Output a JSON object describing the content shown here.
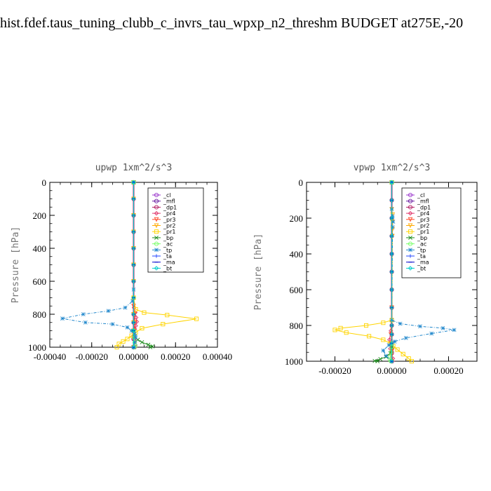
{
  "page_title": "hist.fdef.taus_tuning_clubb_c_invrs_tau_wpxp_n2_threshm  BUDGET at275E,-20",
  "chart_data": [
    {
      "type": "line",
      "title": "upwp   1xm^2/s^3",
      "ylabel": "Pressure [hPa]",
      "xlim": [
        -0.0004,
        0.0004
      ],
      "ylim": [
        1000,
        0
      ],
      "xticks": [
        "-0.00040",
        "-0.00020",
        "0.00000",
        "0.00020",
        "0.00040"
      ],
      "yticks": [
        "0",
        "200",
        "400",
        "600",
        "800",
        "1000"
      ],
      "legend": [
        "_cl",
        "_mfl",
        "_dp1",
        "_pr4",
        "_pr3",
        "_pr2",
        "_pr1",
        "_bp",
        "_ac",
        "_tp",
        "_ta",
        "_ma",
        "_bt"
      ],
      "series": [
        {
          "name": "_cl",
          "color": "#9933cc",
          "marker": "circle",
          "x": [
            0,
            0,
            0,
            0,
            0,
            0,
            0,
            0,
            0,
            0,
            0,
            0,
            0
          ],
          "y": [
            0,
            100,
            200,
            300,
            400,
            500,
            600,
            700,
            800,
            850,
            900,
            950,
            1000
          ]
        },
        {
          "name": "_mfl",
          "color": "#66169e",
          "marker": "circle",
          "x": [
            0,
            0,
            0,
            0,
            0,
            0,
            0,
            0,
            0,
            0,
            0,
            0,
            0
          ],
          "y": [
            0,
            100,
            200,
            300,
            400,
            500,
            600,
            700,
            800,
            850,
            900,
            950,
            1000
          ]
        },
        {
          "name": "_dp1",
          "color": "#b0175f",
          "marker": "circle",
          "x": [
            0,
            0,
            0,
            0,
            0,
            0,
            0,
            0,
            0,
            0,
            0,
            0,
            0
          ],
          "y": [
            0,
            100,
            200,
            300,
            400,
            500,
            600,
            700,
            800,
            850,
            900,
            950,
            1000
          ]
        },
        {
          "name": "_pr4",
          "color": "#e0356b",
          "marker": "diamond",
          "x": [
            0,
            0,
            0,
            2e-06,
            8e-06,
            1.2e-05,
            1.5e-05,
            1e-05,
            6e-06,
            2e-06,
            0,
            4e-06,
            6e-06,
            8e-06,
            8e-06
          ],
          "y": [
            0,
            400,
            700,
            760,
            790,
            820,
            845,
            870,
            890,
            910,
            935,
            955,
            970,
            985,
            1000
          ]
        },
        {
          "name": "_pr3",
          "color": "#ff4422",
          "marker": "tri",
          "x": [
            0,
            0,
            0,
            4e-06,
            6e-06,
            2e-06,
            0
          ],
          "y": [
            0,
            500,
            750,
            800,
            850,
            900,
            1000
          ]
        },
        {
          "name": "_pr2",
          "color": "#ffaa00",
          "marker": "tri",
          "x": [
            0,
            0,
            0,
            0,
            0,
            0,
            0,
            0,
            0,
            0,
            0,
            0
          ],
          "y": [
            0,
            100,
            200,
            300,
            400,
            500,
            600,
            700,
            800,
            850,
            900,
            1000
          ]
        },
        {
          "name": "_pr1",
          "color": "#ffd400",
          "marker": "square",
          "x": [
            0,
            0,
            1e-05,
            5e-05,
            0.00016,
            0.0003,
            0.00014,
            4e-05,
            1e-05,
            -1e-05,
            -3e-05,
            -5e-05,
            -7e-05,
            -8e-05
          ],
          "y": [
            0,
            700,
            770,
            790,
            805,
            828,
            860,
            885,
            910,
            930,
            950,
            965,
            980,
            1000
          ]
        },
        {
          "name": "_bp",
          "color": "#1e8c1e",
          "marker": "cross",
          "x": [
            0,
            0,
            5e-06,
            2e-05,
            4e-05,
            7e-05,
            9e-05,
            8e-05
          ],
          "y": [
            0,
            900,
            935,
            955,
            970,
            985,
            995,
            1000
          ]
        },
        {
          "name": "_ac",
          "color": "#77ff66",
          "marker": "circle",
          "x": [
            0,
            0,
            2e-06,
            5e-06,
            8e-06,
            4e-06
          ],
          "y": [
            0,
            900,
            940,
            970,
            990,
            1000
          ]
        },
        {
          "name": "_tp",
          "color": "#2288cc",
          "marker": "star",
          "x": [
            0,
            0,
            -5e-06,
            -4e-05,
            -0.00012,
            -0.00024,
            -0.00034,
            -0.00023,
            -0.0001,
            -3e-05,
            -1e-05,
            5e-06,
            1e-05,
            5e-06,
            0
          ],
          "y": [
            0,
            650,
            720,
            760,
            780,
            800,
            826,
            850,
            860,
            880,
            900,
            920,
            940,
            970,
            1000
          ]
        },
        {
          "name": "_ta",
          "color": "#2244ff",
          "marker": "plus",
          "x": [
            0,
            0,
            0,
            0,
            0,
            0,
            0,
            0,
            0,
            0,
            0,
            0
          ],
          "y": [
            0,
            100,
            200,
            300,
            400,
            500,
            600,
            700,
            800,
            850,
            900,
            1000
          ]
        },
        {
          "name": "_ma",
          "color": "#0000cc",
          "marker": "dash",
          "x": [
            0,
            0,
            0,
            0,
            0,
            0,
            0,
            0,
            0,
            0,
            0,
            0
          ],
          "y": [
            0,
            100,
            200,
            300,
            400,
            500,
            600,
            700,
            800,
            850,
            900,
            1000
          ]
        },
        {
          "name": "_bt",
          "color": "#00cccc",
          "marker": "diamond",
          "x": [
            0,
            0,
            0,
            0,
            0,
            0,
            0,
            0,
            0,
            0,
            0,
            0
          ],
          "y": [
            0,
            100,
            200,
            300,
            400,
            500,
            600,
            700,
            800,
            850,
            900,
            1000
          ]
        }
      ]
    },
    {
      "type": "line",
      "title": "vpwp   1xm^2/s^3",
      "ylabel": "Pressure [hPa]",
      "xlim": [
        -0.0003,
        0.0003
      ],
      "ylim": [
        1000,
        0
      ],
      "xticks": [
        "-0.00020",
        "0.00000",
        "0.00020"
      ],
      "yticks": [
        "0",
        "200",
        "400",
        "600",
        "800",
        "1000"
      ],
      "legend": [
        "_cl",
        "_mfl",
        "_dp1",
        "_pr4",
        "_pr3",
        "_pr2",
        "_pr1",
        "_bp",
        "_ac",
        "_tp",
        "_ta",
        "_ma",
        "_bt"
      ],
      "series": [
        {
          "name": "_cl",
          "color": "#9933cc",
          "marker": "circle",
          "x": [
            0,
            0,
            0,
            0,
            0,
            0,
            0,
            0,
            0,
            0,
            0,
            0,
            0
          ],
          "y": [
            0,
            100,
            200,
            300,
            400,
            500,
            600,
            700,
            800,
            850,
            900,
            950,
            1000
          ]
        },
        {
          "name": "_mfl",
          "color": "#66169e",
          "marker": "circle",
          "x": [
            0,
            0,
            0,
            0,
            0,
            0,
            0,
            0,
            0,
            0,
            0,
            0,
            0
          ],
          "y": [
            0,
            100,
            200,
            300,
            400,
            500,
            600,
            700,
            800,
            850,
            900,
            950,
            1000
          ]
        },
        {
          "name": "_dp1",
          "color": "#b0175f",
          "marker": "circle",
          "x": [
            0,
            0,
            0,
            0,
            0,
            0,
            0,
            0,
            0,
            0,
            0,
            0,
            0
          ],
          "y": [
            0,
            100,
            200,
            300,
            400,
            500,
            600,
            700,
            800,
            850,
            900,
            950,
            1000
          ]
        },
        {
          "name": "_pr4",
          "color": "#e0356b",
          "marker": "diamond",
          "x": [
            0,
            0,
            -3e-06,
            -8e-06,
            -5e-06,
            0,
            4e-06,
            3e-06
          ],
          "y": [
            0,
            700,
            830,
            880,
            930,
            960,
            985,
            1000
          ]
        },
        {
          "name": "_pr3",
          "color": "#ff4422",
          "marker": "tri",
          "x": [
            0,
            0,
            -3e-06,
            4e-06,
            0
          ],
          "y": [
            0,
            700,
            850,
            930,
            1000
          ]
        },
        {
          "name": "_pr2",
          "color": "#ffaa00",
          "marker": "tri",
          "x": [
            0,
            0,
            3e-06,
            2e-06,
            3e-06,
            2e-06,
            0
          ],
          "y": [
            0,
            150,
            180,
            220,
            260,
            300,
            1000
          ]
        },
        {
          "name": "_pr1",
          "color": "#ffd400",
          "marker": "square",
          "x": [
            0,
            0,
            -3e-05,
            -9e-05,
            -0.00018,
            -0.0002,
            -0.00016,
            -8e-05,
            -3e-05,
            -5e-06,
            5e-06,
            2e-05,
            4e-05,
            6e-05,
            7e-05
          ],
          "y": [
            0,
            770,
            785,
            800,
            815,
            825,
            840,
            860,
            880,
            900,
            915,
            935,
            960,
            985,
            1000
          ]
        },
        {
          "name": "_bp",
          "color": "#1e8c1e",
          "marker": "cross",
          "x": [
            0,
            0,
            -5e-06,
            -2e-05,
            -4e-05,
            -6e-05,
            -5e-05
          ],
          "y": [
            0,
            920,
            955,
            975,
            988,
            998,
            1000
          ]
        },
        {
          "name": "_ac",
          "color": "#77ff66",
          "marker": "circle",
          "x": [
            0,
            0,
            -2e-06,
            -5e-06,
            -6e-06,
            -3e-06
          ],
          "y": [
            0,
            920,
            950,
            975,
            992,
            1000
          ]
        },
        {
          "name": "_tp",
          "color": "#2288cc",
          "marker": "star",
          "x": [
            0,
            0,
            3e-06,
            5e-06,
            3e-06,
            0,
            3e-05,
            0.0001,
            0.00018,
            0.00022,
            0.00014,
            5e-05,
            1e-05,
            -1e-05,
            -3e-05,
            -2e-05,
            0
          ],
          "y": [
            0,
            150,
            190,
            220,
            250,
            770,
            790,
            805,
            815,
            825,
            845,
            870,
            890,
            910,
            940,
            970,
            1000
          ]
        },
        {
          "name": "_ta",
          "color": "#2244ff",
          "marker": "plus",
          "x": [
            0,
            0,
            0,
            0,
            0,
            0,
            0,
            0,
            0,
            0,
            0,
            0
          ],
          "y": [
            0,
            100,
            200,
            300,
            400,
            500,
            600,
            700,
            800,
            850,
            900,
            1000
          ]
        },
        {
          "name": "_ma",
          "color": "#0000cc",
          "marker": "dash",
          "x": [
            0,
            0,
            0,
            0,
            0,
            0,
            0,
            0,
            0,
            0,
            0,
            0
          ],
          "y": [
            0,
            100,
            200,
            300,
            400,
            500,
            600,
            700,
            800,
            850,
            900,
            1000
          ]
        },
        {
          "name": "_bt",
          "color": "#00cccc",
          "marker": "diamond",
          "x": [
            0,
            0,
            0,
            0,
            0,
            0,
            0,
            0,
            0,
            0,
            0,
            0
          ],
          "y": [
            0,
            100,
            200,
            300,
            400,
            500,
            600,
            700,
            800,
            850,
            900,
            1000
          ]
        }
      ]
    }
  ]
}
